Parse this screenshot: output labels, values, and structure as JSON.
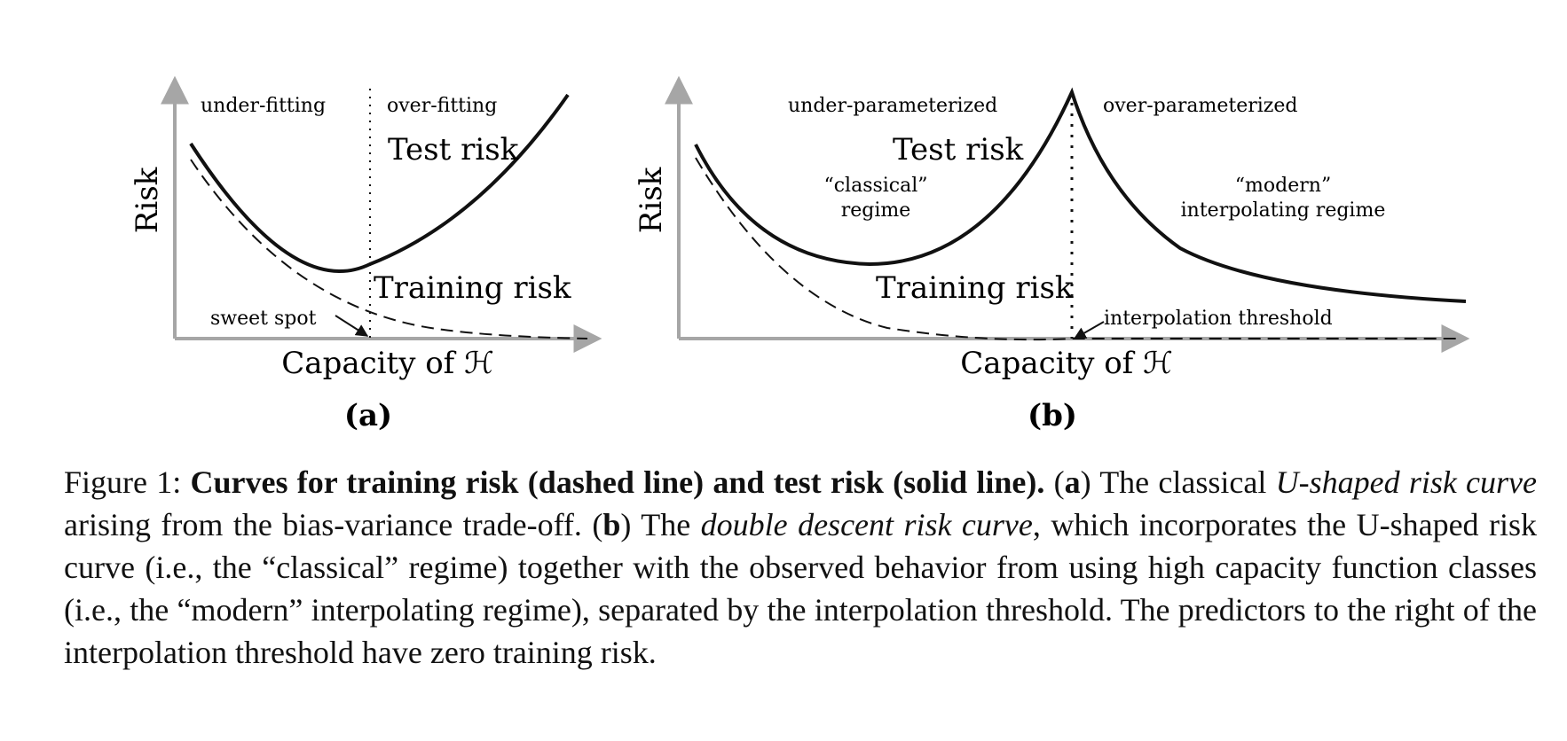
{
  "figure": {
    "panel_a": {
      "ylabel": "Risk",
      "xlabel": "Capacity of ℋ",
      "label": "(a)",
      "region_left": "under-fitting",
      "region_right": "over-fitting",
      "test_label": "Test risk",
      "train_label": "Training risk",
      "annotation": "sweet spot"
    },
    "panel_b": {
      "ylabel": "Risk",
      "xlabel": "Capacity of ℋ",
      "label": "(b)",
      "region_left": "under-parameterized",
      "region_right": "over-parameterized",
      "test_label": "Test risk",
      "train_label": "Training risk",
      "classical_line1": "“classical”",
      "classical_line2": "regime",
      "modern_line1": "“modern”",
      "modern_line2": "interpolating regime",
      "annotation": "interpolation threshold"
    }
  },
  "caption": {
    "figure_num": "Figure 1:",
    "bold_title": "Curves for training risk (dashed line) and test risk (solid line).",
    "a_letter": "a",
    "a_text": "The classical",
    "a_italic": "U-shaped risk curve",
    "a_rest": "arising from the bias-variance trade-off.",
    "b_letter": "b",
    "b_text": "The",
    "b_italic": "double descent risk curve",
    "b_rest": ", which incorporates the U-shaped risk curve (i.e., the “classical” regime) together with the observed behavior from using high capacity function classes (i.e., the “modern” interpolating regime), separated by the interpolation threshold. The predictors to the right of the interpolation threshold have zero training risk."
  },
  "colors": {
    "axis": "#a6a6a6",
    "curve": "#111111"
  }
}
